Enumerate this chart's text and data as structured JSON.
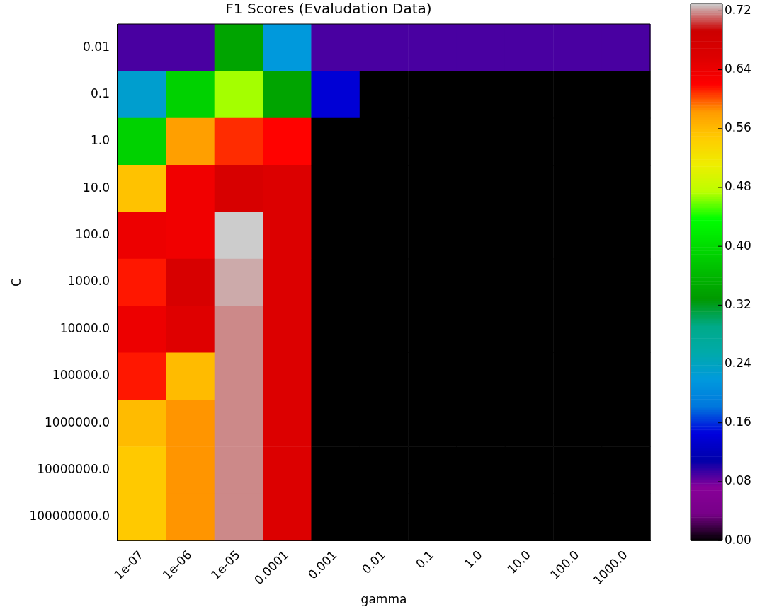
{
  "chart_data": {
    "type": "heatmap",
    "title": "F1 Scores (Evaludation Data)",
    "xlabel": "gamma",
    "ylabel": "C",
    "categories": [
      "1e-07",
      "1e-06",
      "1e-05",
      "0.0001",
      "0.001",
      "0.01",
      "0.1",
      "1.0",
      "10.0",
      "100.0",
      "1000.0"
    ],
    "y_categories": [
      "0.01",
      "0.1",
      "1.0",
      "10.0",
      "100.0",
      "1000.0",
      "10000.0",
      "100000.0",
      "1000000.0",
      "10000000.0",
      "100000000.0"
    ],
    "cells": [
      [
        0.09,
        0.09,
        0.34,
        0.22,
        0.09,
        0.09,
        0.09,
        0.09,
        0.09,
        0.09,
        0.09
      ],
      [
        0.23,
        0.39,
        0.47,
        0.34,
        0.14,
        0,
        0,
        0,
        0,
        0,
        0
      ],
      [
        0.39,
        0.58,
        0.61,
        0.62,
        0,
        0,
        0,
        0,
        0,
        0,
        0
      ],
      [
        0.555,
        0.635,
        0.67,
        0.66,
        0,
        0,
        0,
        0,
        0,
        0,
        0
      ],
      [
        0.64,
        0.635,
        0.73,
        0.66,
        0,
        0,
        0,
        0,
        0,
        0,
        0
      ],
      [
        0.615,
        0.67,
        0.724,
        0.66,
        0,
        0,
        0,
        0,
        0,
        0,
        0
      ],
      [
        0.64,
        0.655,
        0.718,
        0.66,
        0,
        0,
        0,
        0,
        0,
        0,
        0
      ],
      [
        0.615,
        0.56,
        0.718,
        0.66,
        0,
        0,
        0,
        0,
        0,
        0,
        0
      ],
      [
        0.56,
        0.585,
        0.718,
        0.66,
        0,
        0,
        0,
        0,
        0,
        0,
        0
      ],
      [
        0.55,
        0.585,
        0.718,
        0.66,
        0,
        0,
        0,
        0,
        0,
        0,
        0
      ],
      [
        0.55,
        0.585,
        0.718,
        0.66,
        0,
        0,
        0,
        0,
        0,
        0,
        0
      ]
    ],
    "clim": [
      0,
      0.73
    ],
    "cticks": [
      {
        "value": 0,
        "label": "0.00"
      },
      0.08,
      0.16,
      0.24,
      0.32,
      {
        "value": 0.4,
        "label": "0.40"
      },
      0.48,
      0.56,
      0.64,
      0.72
    ]
  }
}
